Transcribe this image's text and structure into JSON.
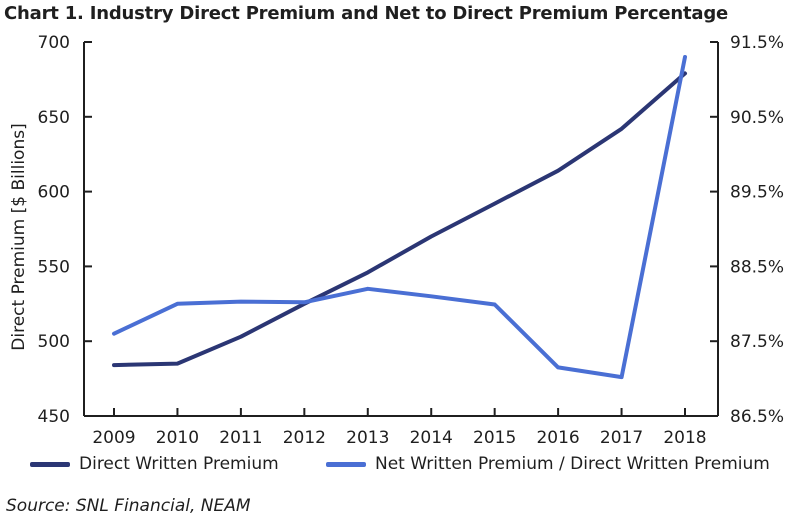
{
  "chart_data": {
    "type": "line",
    "title": "Chart 1. Industry Direct Premium and Net to Direct Premium Percentage",
    "categories": [
      "2009",
      "2010",
      "2011",
      "2012",
      "2013",
      "2014",
      "2015",
      "2016",
      "2017",
      "2018"
    ],
    "ylabel": "Direct Premium [$ Billions]",
    "ylim": [
      450,
      700
    ],
    "yticks": [
      "450",
      "500",
      "550",
      "600",
      "650",
      "700"
    ],
    "y2lim": [
      86.5,
      91.5
    ],
    "y2ticks": [
      "86.5%",
      "87.5%",
      "88.5%",
      "89.5%",
      "90.5%",
      "91.5%"
    ],
    "series": [
      {
        "name": "Direct Written Premium",
        "axis": "left",
        "color": "#2b3674",
        "values": [
          484,
          485,
          503,
          525,
          546,
          570,
          592,
          614,
          642,
          679
        ]
      },
      {
        "name": "Net Written Premium / Direct Written Premium",
        "axis": "right",
        "color": "#4a6fd4",
        "values": [
          87.6,
          88.0,
          88.03,
          88.02,
          88.2,
          88.1,
          87.99,
          87.15,
          87.02,
          91.3
        ]
      }
    ],
    "source": "Source: SNL Financial, NEAM"
  }
}
